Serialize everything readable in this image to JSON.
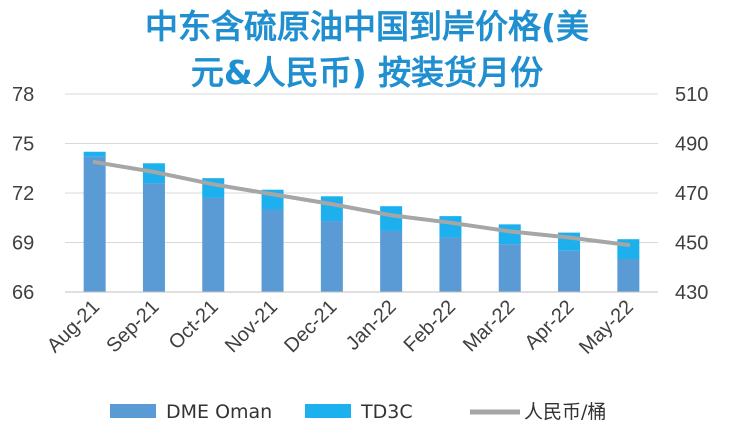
{
  "chart_data": {
    "type": "bar",
    "title_line1": "中东含硫原油中国到岸价格(美",
    "title_line2": "元&人民币) 按装货月份",
    "categories": [
      "Aug-21",
      "Sep-21",
      "Oct-21",
      "Nov-21",
      "Dec-21",
      "Jan-22",
      "Feb-22",
      "Mar-22",
      "Apr-22",
      "May-22"
    ],
    "left_axis": {
      "ylim": [
        66,
        78
      ],
      "ticks": [
        "66",
        "69",
        "72",
        "75",
        "78"
      ]
    },
    "right_axis": {
      "ylim": [
        430,
        510
      ],
      "ticks": [
        "430",
        "450",
        "470",
        "490",
        "510"
      ]
    },
    "series": [
      {
        "name": "DME Oman",
        "type": "bar",
        "stack": true,
        "axis": "left",
        "color": "#5b9bd5",
        "values": [
          74.2,
          72.6,
          71.7,
          71.0,
          70.3,
          69.7,
          69.3,
          68.9,
          68.5,
          68.0
        ]
      },
      {
        "name": "TD3C",
        "type": "bar",
        "stack": true,
        "axis": "left",
        "color": "#1db0ee",
        "values": [
          0.3,
          1.2,
          1.2,
          1.2,
          1.5,
          1.5,
          1.3,
          1.2,
          1.1,
          1.2
        ]
      },
      {
        "name": "人民币/桶",
        "type": "line",
        "axis": "right",
        "color": "#a6a6a6",
        "values": [
          482.5,
          478.5,
          473.5,
          469.5,
          465.5,
          461.0,
          458.0,
          454.5,
          452.0,
          449.0
        ]
      }
    ],
    "grid": true,
    "legend_position": "bottom"
  }
}
